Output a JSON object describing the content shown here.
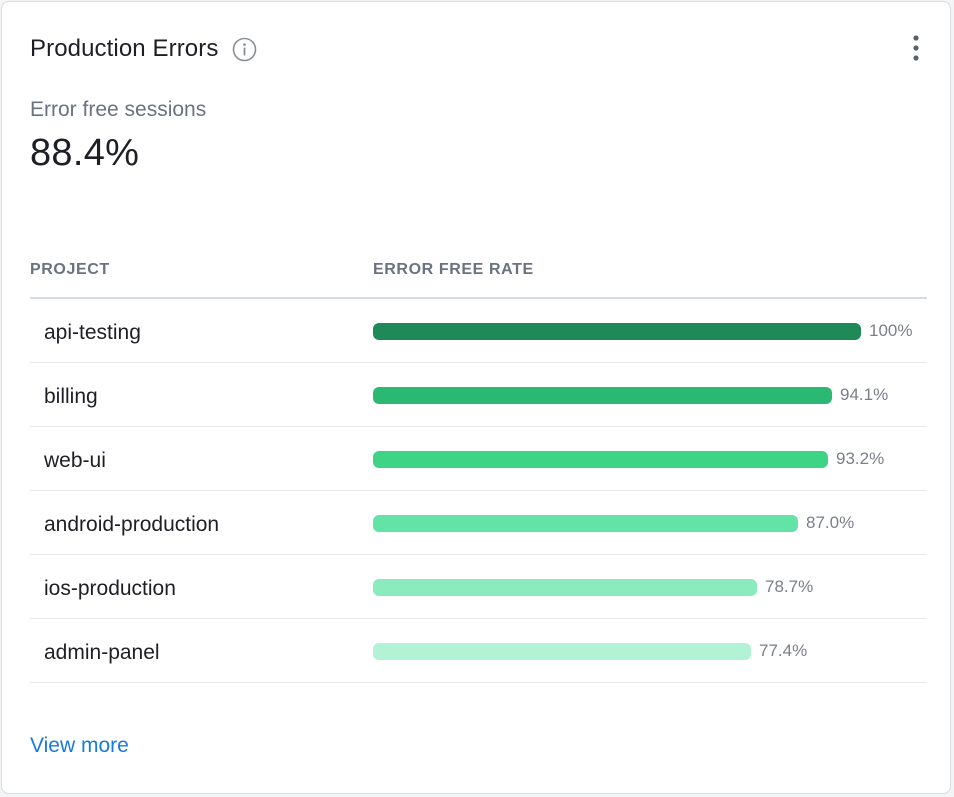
{
  "widget": {
    "title": "Production Errors",
    "info_icon": "info-icon",
    "menu_icon": "vertical-dots-icon"
  },
  "metric": {
    "label": "Error free sessions",
    "value": "88.4%"
  },
  "table": {
    "headers": [
      "PROJECT",
      "ERROR FREE RATE"
    ],
    "rows": [
      {
        "project": "api-testing",
        "rate": 100,
        "rate_label": "100%",
        "color": "#1f8a58"
      },
      {
        "project": "billing",
        "rate": 94.1,
        "rate_label": "94.1%",
        "color": "#2ab872"
      },
      {
        "project": "web-ui",
        "rate": 93.2,
        "rate_label": "93.2%",
        "color": "#3ed486"
      },
      {
        "project": "android-production",
        "rate": 87.0,
        "rate_label": "87.0%",
        "color": "#63e3a5"
      },
      {
        "project": "ios-production",
        "rate": 78.7,
        "rate_label": "78.7%",
        "color": "#8aebbd"
      },
      {
        "project": "admin-panel",
        "rate": 77.4,
        "rate_label": "77.4%",
        "color": "#b1f3d4"
      }
    ]
  },
  "footer": {
    "view_more_label": "View more"
  },
  "colors": {
    "link": "#1a7ad9",
    "muted": "#6b7280"
  }
}
